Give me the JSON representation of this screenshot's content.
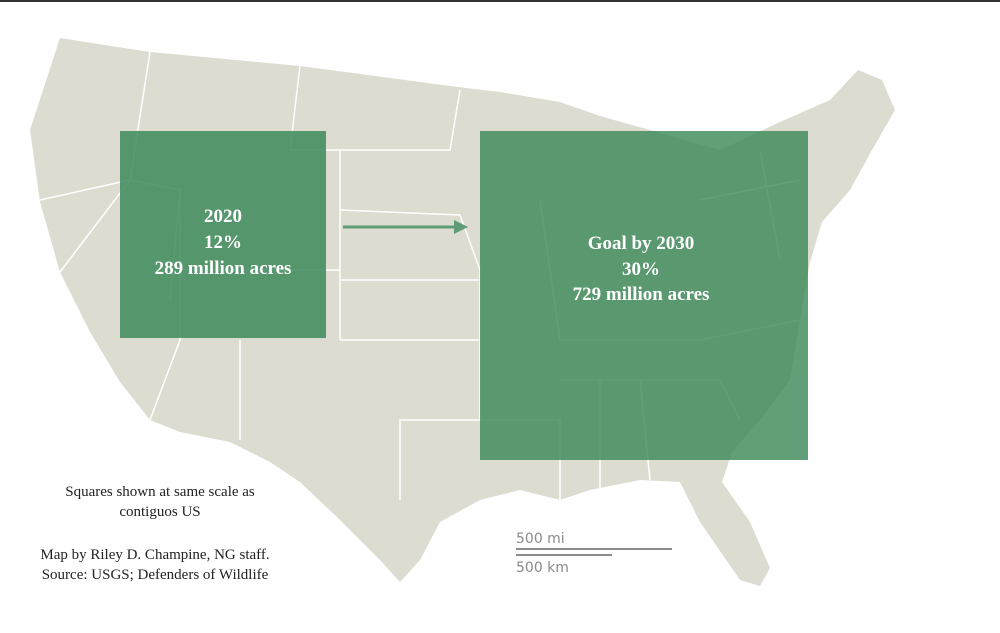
{
  "squares": [
    {
      "year": "2020",
      "percent": "12%",
      "area": "289 million acres"
    },
    {
      "year": "Goal by 2030",
      "percent": "30%",
      "area": "729 million acres"
    }
  ],
  "notes": {
    "scale_note": "Squares shown at same scale as contiguos US",
    "credit": "Map by Riley D. Champine, NG staff. Source: USGS; Defenders of Wildlife"
  },
  "scale_bar": {
    "miles": "500 mi",
    "kilometers": "500 km"
  }
}
